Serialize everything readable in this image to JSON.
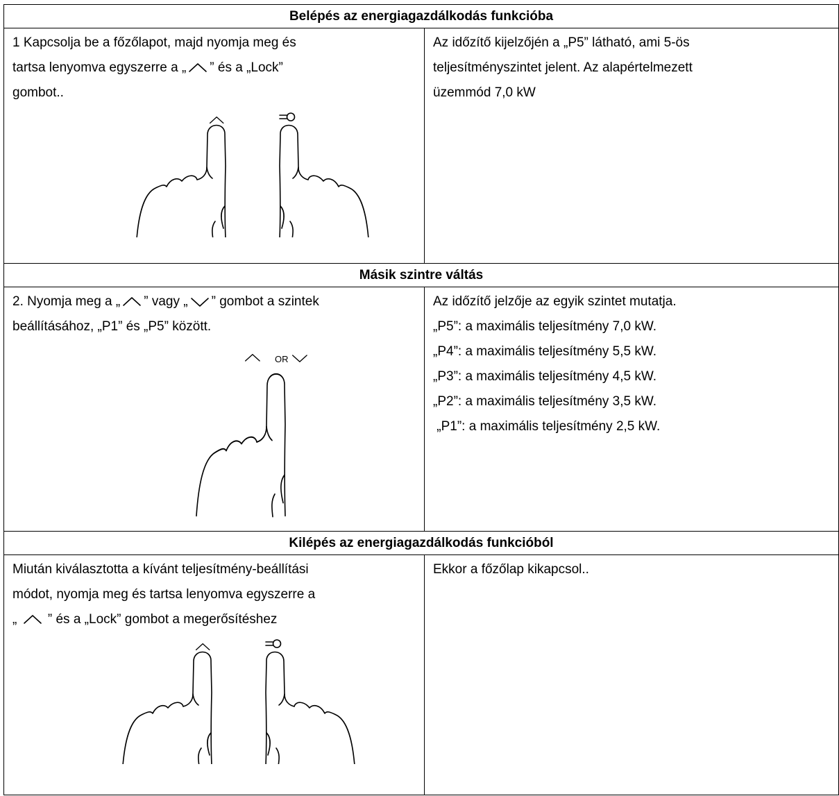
{
  "sections": [
    {
      "title": "Belépés az energiagazdálkodás funkcióba",
      "left": {
        "lines": [
          [
            "1 Kapcsolja be a főzőlapot, majd nyomja meg és"
          ],
          [
            "tartsa lenyomva egyszerre a „",
            "” és a „Lock”"
          ],
          [
            "gombot.."
          ]
        ]
      },
      "right": {
        "lines": [
          "Az időzítő kijelzőjén a „P5” látható, ami 5-ös",
          "teljesítményszintet jelent. Az alapértelmezett",
          "üzemmód 7,0 kW"
        ]
      }
    },
    {
      "title": "Másik szintre váltás",
      "left": {
        "lines": [
          [
            "2. Nyomja meg a „",
            "” vagy „",
            "” gombot a szintek"
          ],
          [
            "beállításához, „P1” és „P5” között."
          ]
        ],
        "illustration_label": "OR"
      },
      "right": {
        "lines": [
          "Az időzítő jelzője az egyik szintet mutatja.",
          "„P5”: a maximális teljesítmény 7,0 kW.",
          "„P4”: a maximális teljesítmény 5,5 kW.",
          "„P3”: a maximális teljesítmény 4,5 kW.",
          "„P2”: a maximális teljesítmény 3,5 kW.",
          " „P1”: a maximális teljesítmény 2,5 kW."
        ]
      }
    },
    {
      "title": "Kilépés az energiagazdálkodás funkcióból",
      "left": {
        "lines": [
          [
            "Miután kiválasztotta a kívánt teljesítmény-beállítási"
          ],
          [
            "módot, nyomja meg és tartsa lenyomva egyszerre a"
          ],
          [
            "„ ",
            " ” és a „Lock” gombot a megerősítéshez"
          ]
        ]
      },
      "right": {
        "lines": [
          "Ekkor a főzőlap kikapcsol.."
        ]
      }
    }
  ]
}
